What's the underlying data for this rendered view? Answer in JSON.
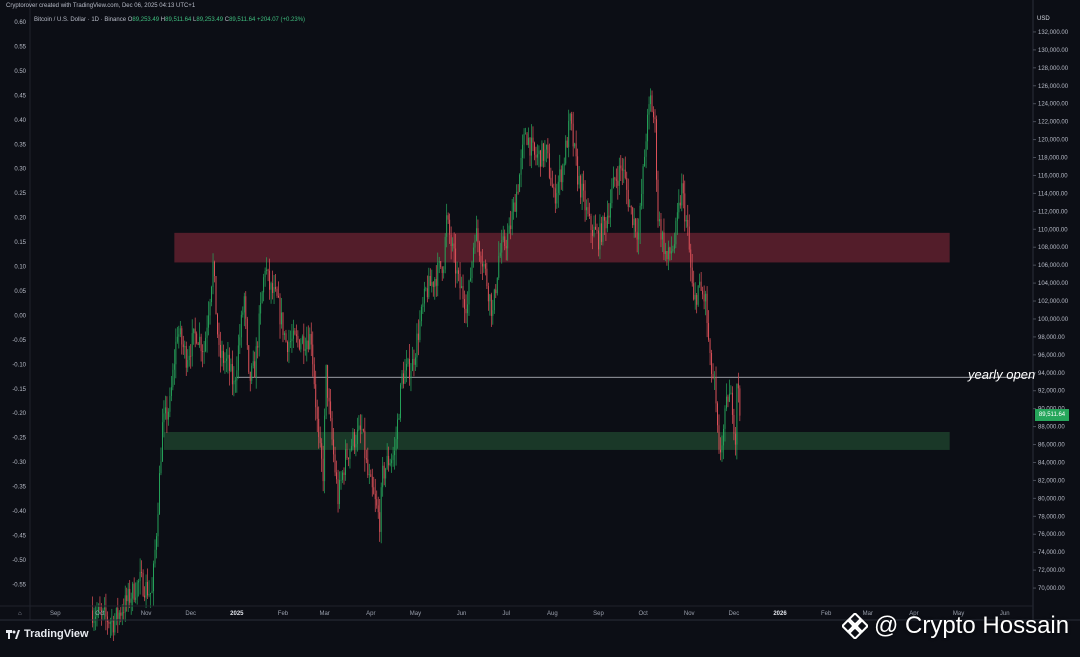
{
  "header": {
    "credit": "Cryptorover created with TradingView.com, Dec 06, 2025 04:13 UTC+1",
    "symbol_label": "Bitcoin / U.S. Dollar · 1D · Binance",
    "ohlc": {
      "o_label": "O",
      "o": "89,253.49",
      "h_label": "H",
      "h": "89,511.64",
      "l_label": "L",
      "l": "89,253.49",
      "c_label": "C",
      "c": "89,511.64",
      "change": "+204.07 (+0.23%)"
    },
    "currency": "USD"
  },
  "footer": {
    "brand": "TradingView",
    "watermark": "@ Crypto Hossain"
  },
  "colors": {
    "up": "#26a65b",
    "down": "#e0525a",
    "resistance_zone": "#5b1f2c",
    "support_zone": "#1c3d2a",
    "yearly_open_line": "#c8cbd3",
    "background": "#0c0e15"
  },
  "chart_data": {
    "type": "candlestick",
    "right_axis": {
      "ticks": [
        "132,000.00",
        "130,000.00",
        "128,000.00",
        "126,000.00",
        "124,000.00",
        "122,000.00",
        "120,000.00",
        "118,000.00",
        "116,000.00",
        "114,000.00",
        "112,000.00",
        "110,000.00",
        "108,000.00",
        "106,000.00",
        "104,000.00",
        "102,000.00",
        "100,000.00",
        "98,000.00",
        "96,000.00",
        "94,000.00",
        "92,000.00",
        "90,000.00",
        "88,000.00",
        "86,000.00",
        "84,000.00",
        "82,000.00",
        "80,000.00",
        "78,000.00",
        "76,000.00",
        "74,000.00",
        "72,000.00",
        "70,000.00"
      ],
      "range": [
        68000,
        134000
      ]
    },
    "left_axis": {
      "ticks": [
        "0.60",
        "0.55",
        "0.50",
        "0.45",
        "0.40",
        "0.35",
        "0.30",
        "0.25",
        "0.20",
        "0.15",
        "0.10",
        "0.05",
        "0.00",
        "-0.05",
        "-0.10",
        "-0.15",
        "-0.20",
        "-0.25",
        "-0.30",
        "-0.35",
        "-0.40",
        "-0.45",
        "-0.50",
        "-0.55"
      ]
    },
    "time_axis": {
      "ticks": [
        "Sep",
        "Oct",
        "Nov",
        "Dec",
        "2025",
        "Feb",
        "Mar",
        "Apr",
        "May",
        "Jun",
        "Jul",
        "Aug",
        "Sep",
        "Oct",
        "Nov",
        "Dec",
        "2026",
        "Feb",
        "Mar",
        "Apr",
        "May",
        "Jun"
      ],
      "start": "2024-08-15",
      "end": "2026-06-20"
    },
    "zone_resistance": {
      "from": "2024-11-20",
      "to": "2026-04-25",
      "low": 106300,
      "high": 109600
    },
    "zone_support": {
      "from": "2024-11-13",
      "to": "2026-04-25",
      "low": 85400,
      "high": 87400
    },
    "yearly_open": {
      "label": "yearly open",
      "value": 93500
    },
    "last_price": "89,511.64",
    "price_path": [
      [
        "2024-09-25",
        67500
      ],
      [
        "2024-10-10",
        66200
      ],
      [
        "2024-10-28",
        70800
      ],
      [
        "2024-11-05",
        69300
      ],
      [
        "2024-11-08",
        76500
      ],
      [
        "2024-11-12",
        88000
      ],
      [
        "2024-11-17",
        90400
      ],
      [
        "2024-11-22",
        98800
      ],
      [
        "2024-11-28",
        95800
      ],
      [
        "2024-12-05",
        98500
      ],
      [
        "2024-12-10",
        96600
      ],
      [
        "2024-12-16",
        106000
      ],
      [
        "2024-12-20",
        96000
      ],
      [
        "2024-12-26",
        95000
      ],
      [
        "2024-12-30",
        92500
      ],
      [
        "2025-01-06",
        102300
      ],
      [
        "2025-01-09",
        93000
      ],
      [
        "2025-01-13",
        94500
      ],
      [
        "2025-01-20",
        106000
      ],
      [
        "2025-01-23",
        103500
      ],
      [
        "2025-01-28",
        102000
      ],
      [
        "2025-02-03",
        97500
      ],
      [
        "2025-02-10",
        97500
      ],
      [
        "2025-02-20",
        98000
      ],
      [
        "2025-02-25",
        86000
      ],
      [
        "2025-02-28",
        82800
      ],
      [
        "2025-03-02",
        94000
      ],
      [
        "2025-03-05",
        88000
      ],
      [
        "2025-03-10",
        80000
      ],
      [
        "2025-03-15",
        84500
      ],
      [
        "2025-03-20",
        86500
      ],
      [
        "2025-03-26",
        87500
      ],
      [
        "2025-03-30",
        82500
      ],
      [
        "2025-04-07",
        77500
      ],
      [
        "2025-04-09",
        82500
      ],
      [
        "2025-04-12",
        84000
      ],
      [
        "2025-04-17",
        85000
      ],
      [
        "2025-04-22",
        93500
      ],
      [
        "2025-04-29",
        95000
      ],
      [
        "2025-05-08",
        103000
      ],
      [
        "2025-05-12",
        104000
      ],
      [
        "2025-05-20",
        106500
      ],
      [
        "2025-05-22",
        111000
      ],
      [
        "2025-05-30",
        104000
      ],
      [
        "2025-06-05",
        101500
      ],
      [
        "2025-06-10",
        110000
      ],
      [
        "2025-06-16",
        106000
      ],
      [
        "2025-06-22",
        100500
      ],
      [
        "2025-06-26",
        107000
      ],
      [
        "2025-07-03",
        109500
      ],
      [
        "2025-07-10",
        116000
      ],
      [
        "2025-07-14",
        121000
      ],
      [
        "2025-07-20",
        118000
      ],
      [
        "2025-07-28",
        118500
      ],
      [
        "2025-08-02",
        113500
      ],
      [
        "2025-08-08",
        117000
      ],
      [
        "2025-08-13",
        122000
      ],
      [
        "2025-08-18",
        116000
      ],
      [
        "2025-08-26",
        110500
      ],
      [
        "2025-09-01",
        109000
      ],
      [
        "2025-09-06",
        111000
      ],
      [
        "2025-09-12",
        115500
      ],
      [
        "2025-09-17",
        117000
      ],
      [
        "2025-09-22",
        112500
      ],
      [
        "2025-09-28",
        109500
      ],
      [
        "2025-10-03",
        120500
      ],
      [
        "2025-10-06",
        124500
      ],
      [
        "2025-10-09",
        121500
      ],
      [
        "2025-10-11",
        111500
      ],
      [
        "2025-10-17",
        106500
      ],
      [
        "2025-10-22",
        108500
      ],
      [
        "2025-10-27",
        114500
      ],
      [
        "2025-10-31",
        109500
      ],
      [
        "2025-11-04",
        101500
      ],
      [
        "2025-11-07",
        103500
      ],
      [
        "2025-11-12",
        102000
      ],
      [
        "2025-11-15",
        95000
      ],
      [
        "2025-11-18",
        92500
      ],
      [
        "2025-11-21",
        84500
      ],
      [
        "2025-11-24",
        87500
      ],
      [
        "2025-11-27",
        91500
      ],
      [
        "2025-11-30",
        90500
      ],
      [
        "2025-12-02",
        86500
      ],
      [
        "2025-12-03",
        93500
      ],
      [
        "2025-12-05",
        89500
      ]
    ]
  }
}
